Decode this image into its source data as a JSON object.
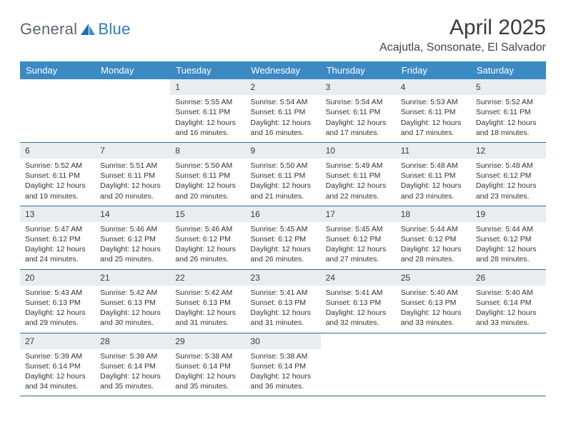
{
  "logo": {
    "text1": "General",
    "text2": "Blue"
  },
  "title": "April 2025",
  "location": "Acajutla, Sonsonate, El Salvador",
  "colors": {
    "header_bg": "#3b8ac4",
    "header_text": "#ffffff",
    "daynum_bg": "#e9edf0",
    "week_border": "#3b6a8f",
    "body_text": "#333333",
    "logo_gray": "#5c6670",
    "logo_blue": "#2f7bbf"
  },
  "day_headers": [
    "Sunday",
    "Monday",
    "Tuesday",
    "Wednesday",
    "Thursday",
    "Friday",
    "Saturday"
  ],
  "weeks": [
    [
      {
        "blank": true
      },
      {
        "blank": true
      },
      {
        "n": "1",
        "sunrise": "Sunrise: 5:55 AM",
        "sunset": "Sunset: 6:11 PM",
        "day1": "Daylight: 12 hours",
        "day2": "and 16 minutes."
      },
      {
        "n": "2",
        "sunrise": "Sunrise: 5:54 AM",
        "sunset": "Sunset: 6:11 PM",
        "day1": "Daylight: 12 hours",
        "day2": "and 16 minutes."
      },
      {
        "n": "3",
        "sunrise": "Sunrise: 5:54 AM",
        "sunset": "Sunset: 6:11 PM",
        "day1": "Daylight: 12 hours",
        "day2": "and 17 minutes."
      },
      {
        "n": "4",
        "sunrise": "Sunrise: 5:53 AM",
        "sunset": "Sunset: 6:11 PM",
        "day1": "Daylight: 12 hours",
        "day2": "and 17 minutes."
      },
      {
        "n": "5",
        "sunrise": "Sunrise: 5:52 AM",
        "sunset": "Sunset: 6:11 PM",
        "day1": "Daylight: 12 hours",
        "day2": "and 18 minutes."
      }
    ],
    [
      {
        "n": "6",
        "sunrise": "Sunrise: 5:52 AM",
        "sunset": "Sunset: 6:11 PM",
        "day1": "Daylight: 12 hours",
        "day2": "and 19 minutes."
      },
      {
        "n": "7",
        "sunrise": "Sunrise: 5:51 AM",
        "sunset": "Sunset: 6:11 PM",
        "day1": "Daylight: 12 hours",
        "day2": "and 20 minutes."
      },
      {
        "n": "8",
        "sunrise": "Sunrise: 5:50 AM",
        "sunset": "Sunset: 6:11 PM",
        "day1": "Daylight: 12 hours",
        "day2": "and 20 minutes."
      },
      {
        "n": "9",
        "sunrise": "Sunrise: 5:50 AM",
        "sunset": "Sunset: 6:11 PM",
        "day1": "Daylight: 12 hours",
        "day2": "and 21 minutes."
      },
      {
        "n": "10",
        "sunrise": "Sunrise: 5:49 AM",
        "sunset": "Sunset: 6:11 PM",
        "day1": "Daylight: 12 hours",
        "day2": "and 22 minutes."
      },
      {
        "n": "11",
        "sunrise": "Sunrise: 5:48 AM",
        "sunset": "Sunset: 6:11 PM",
        "day1": "Daylight: 12 hours",
        "day2": "and 23 minutes."
      },
      {
        "n": "12",
        "sunrise": "Sunrise: 5:48 AM",
        "sunset": "Sunset: 6:12 PM",
        "day1": "Daylight: 12 hours",
        "day2": "and 23 minutes."
      }
    ],
    [
      {
        "n": "13",
        "sunrise": "Sunrise: 5:47 AM",
        "sunset": "Sunset: 6:12 PM",
        "day1": "Daylight: 12 hours",
        "day2": "and 24 minutes."
      },
      {
        "n": "14",
        "sunrise": "Sunrise: 5:46 AM",
        "sunset": "Sunset: 6:12 PM",
        "day1": "Daylight: 12 hours",
        "day2": "and 25 minutes."
      },
      {
        "n": "15",
        "sunrise": "Sunrise: 5:46 AM",
        "sunset": "Sunset: 6:12 PM",
        "day1": "Daylight: 12 hours",
        "day2": "and 26 minutes."
      },
      {
        "n": "16",
        "sunrise": "Sunrise: 5:45 AM",
        "sunset": "Sunset: 6:12 PM",
        "day1": "Daylight: 12 hours",
        "day2": "and 26 minutes."
      },
      {
        "n": "17",
        "sunrise": "Sunrise: 5:45 AM",
        "sunset": "Sunset: 6:12 PM",
        "day1": "Daylight: 12 hours",
        "day2": "and 27 minutes."
      },
      {
        "n": "18",
        "sunrise": "Sunrise: 5:44 AM",
        "sunset": "Sunset: 6:12 PM",
        "day1": "Daylight: 12 hours",
        "day2": "and 28 minutes."
      },
      {
        "n": "19",
        "sunrise": "Sunrise: 5:44 AM",
        "sunset": "Sunset: 6:12 PM",
        "day1": "Daylight: 12 hours",
        "day2": "and 28 minutes."
      }
    ],
    [
      {
        "n": "20",
        "sunrise": "Sunrise: 5:43 AM",
        "sunset": "Sunset: 6:13 PM",
        "day1": "Daylight: 12 hours",
        "day2": "and 29 minutes."
      },
      {
        "n": "21",
        "sunrise": "Sunrise: 5:42 AM",
        "sunset": "Sunset: 6:13 PM",
        "day1": "Daylight: 12 hours",
        "day2": "and 30 minutes."
      },
      {
        "n": "22",
        "sunrise": "Sunrise: 5:42 AM",
        "sunset": "Sunset: 6:13 PM",
        "day1": "Daylight: 12 hours",
        "day2": "and 31 minutes."
      },
      {
        "n": "23",
        "sunrise": "Sunrise: 5:41 AM",
        "sunset": "Sunset: 6:13 PM",
        "day1": "Daylight: 12 hours",
        "day2": "and 31 minutes."
      },
      {
        "n": "24",
        "sunrise": "Sunrise: 5:41 AM",
        "sunset": "Sunset: 6:13 PM",
        "day1": "Daylight: 12 hours",
        "day2": "and 32 minutes."
      },
      {
        "n": "25",
        "sunrise": "Sunrise: 5:40 AM",
        "sunset": "Sunset: 6:13 PM",
        "day1": "Daylight: 12 hours",
        "day2": "and 33 minutes."
      },
      {
        "n": "26",
        "sunrise": "Sunrise: 5:40 AM",
        "sunset": "Sunset: 6:14 PM",
        "day1": "Daylight: 12 hours",
        "day2": "and 33 minutes."
      }
    ],
    [
      {
        "n": "27",
        "sunrise": "Sunrise: 5:39 AM",
        "sunset": "Sunset: 6:14 PM",
        "day1": "Daylight: 12 hours",
        "day2": "and 34 minutes."
      },
      {
        "n": "28",
        "sunrise": "Sunrise: 5:39 AM",
        "sunset": "Sunset: 6:14 PM",
        "day1": "Daylight: 12 hours",
        "day2": "and 35 minutes."
      },
      {
        "n": "29",
        "sunrise": "Sunrise: 5:38 AM",
        "sunset": "Sunset: 6:14 PM",
        "day1": "Daylight: 12 hours",
        "day2": "and 35 minutes."
      },
      {
        "n": "30",
        "sunrise": "Sunrise: 5:38 AM",
        "sunset": "Sunset: 6:14 PM",
        "day1": "Daylight: 12 hours",
        "day2": "and 36 minutes."
      },
      {
        "blank": true
      },
      {
        "blank": true
      },
      {
        "blank": true
      }
    ]
  ]
}
